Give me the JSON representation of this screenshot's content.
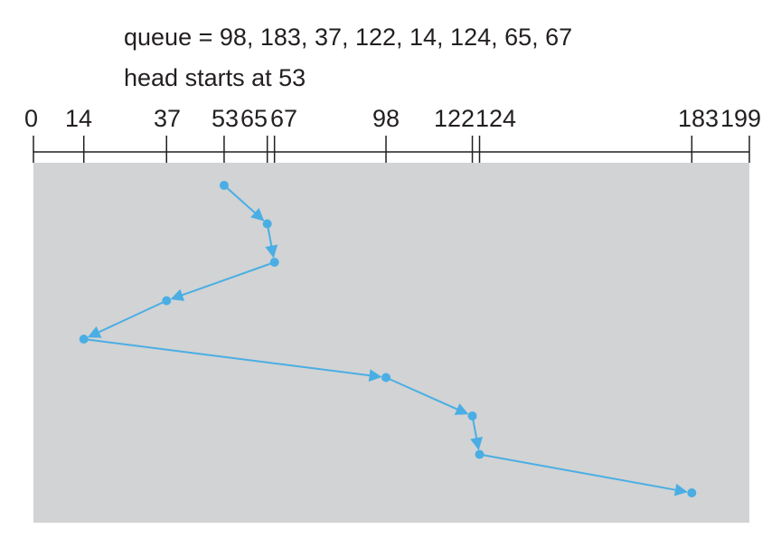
{
  "header": {
    "queue_text": "queue = 98, 183, 37, 122, 14, 124, 65, 67",
    "head_text": "head starts at 53"
  },
  "colors": {
    "panel": "#d1d3d4",
    "path": "#4aaee4",
    "axis": "#231f20"
  },
  "chart_data": {
    "type": "line",
    "title": "",
    "cylinder_range": [
      0,
      199
    ],
    "axis_ticks": [
      {
        "value": 0,
        "label": "0"
      },
      {
        "value": 14,
        "label": "14"
      },
      {
        "value": 37,
        "label": "37"
      },
      {
        "value": 53,
        "label": "53"
      },
      {
        "value": 65,
        "label": "65"
      },
      {
        "value": 67,
        "label": "67"
      },
      {
        "value": 98,
        "label": "98"
      },
      {
        "value": 122,
        "label": "122"
      },
      {
        "value": 124,
        "label": "124"
      },
      {
        "value": 183,
        "label": "183"
      },
      {
        "value": 199,
        "label": "199"
      }
    ],
    "head_path": [
      53,
      65,
      67,
      37,
      14,
      98,
      122,
      124,
      183
    ]
  }
}
